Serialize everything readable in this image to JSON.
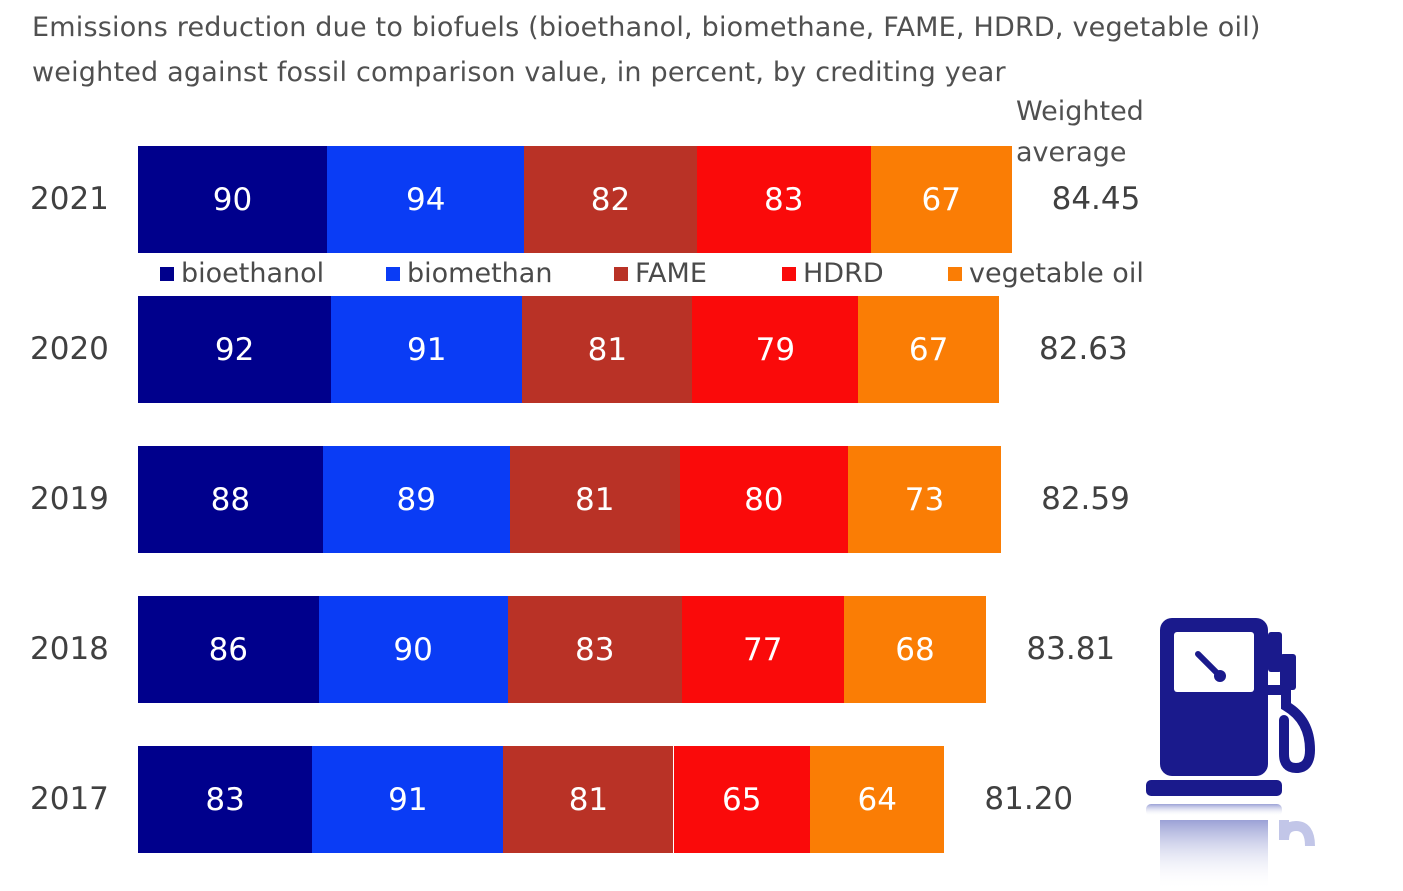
{
  "chart_data": {
    "type": "bar",
    "stacked": true,
    "orientation": "horizontal",
    "title": "Emissions reduction due to biofuels (bioethanol, biomethane, FAME, HDRD, vegetable oil)",
    "subtitle": "weighted against fossil comparison value, in percent, by crediting year",
    "categories": [
      "2021",
      "2020",
      "2019",
      "2018",
      "2017"
    ],
    "series": [
      {
        "name": "bioethanol",
        "color": "#00008c",
        "values": [
          90,
          92,
          88,
          86,
          83
        ]
      },
      {
        "name": "biomethan",
        "color": "#0a3cf5",
        "values": [
          94,
          91,
          89,
          90,
          91
        ]
      },
      {
        "name": "FAME",
        "color": "#b93226",
        "values": [
          82,
          81,
          81,
          83,
          81
        ]
      },
      {
        "name": "HDRD",
        "color": "#fa0a0a",
        "values": [
          83,
          79,
          80,
          77,
          65
        ]
      },
      {
        "name": "vegetable oil",
        "color": "#fa7d05",
        "values": [
          67,
          67,
          73,
          68,
          64
        ]
      }
    ],
    "weighted_average_label": [
      "Weighted",
      "average"
    ],
    "weighted_average": [
      "84.45",
      "82.63",
      "82.59",
      "83.81",
      "81.20"
    ],
    "legend_position": "between first and second bar",
    "grid": false
  },
  "icon": "fuel-pump-icon"
}
